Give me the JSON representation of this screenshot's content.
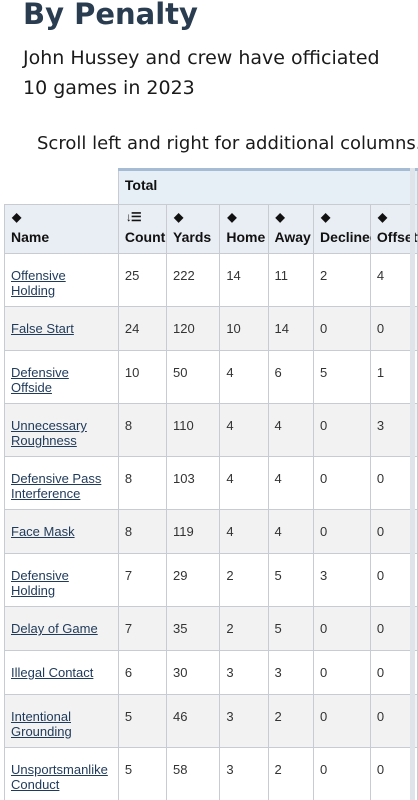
{
  "heading": "By Penalty",
  "subtitle": "John Hussey and crew have officiated 10 games in 2023",
  "scroll_note": "Scroll left and right for additional columns.",
  "table": {
    "group_label": "Total",
    "columns": {
      "name": "Name",
      "count": "Count",
      "yards": "Yards",
      "home": "Home",
      "away": "Away",
      "declined": "Declined",
      "offsetting": "Offsetting"
    },
    "rows": [
      {
        "name": "Offensive Holding",
        "count": "25",
        "yards": "222",
        "home": "14",
        "away": "11",
        "declined": "2",
        "offsetting": "4"
      },
      {
        "name": "False Start",
        "count": "24",
        "yards": "120",
        "home": "10",
        "away": "14",
        "declined": "0",
        "offsetting": "0"
      },
      {
        "name": "Defensive Offside",
        "count": "10",
        "yards": "50",
        "home": "4",
        "away": "6",
        "declined": "5",
        "offsetting": "1"
      },
      {
        "name": "Unnecessary Roughness",
        "count": "8",
        "yards": "110",
        "home": "4",
        "away": "4",
        "declined": "0",
        "offsetting": "3"
      },
      {
        "name": "Defensive Pass Interference",
        "count": "8",
        "yards": "103",
        "home": "4",
        "away": "4",
        "declined": "0",
        "offsetting": "0"
      },
      {
        "name": "Face Mask",
        "count": "8",
        "yards": "119",
        "home": "4",
        "away": "4",
        "declined": "0",
        "offsetting": "0"
      },
      {
        "name": "Defensive Holding",
        "count": "7",
        "yards": "29",
        "home": "2",
        "away": "5",
        "declined": "3",
        "offsetting": "0"
      },
      {
        "name": "Delay of Game",
        "count": "7",
        "yards": "35",
        "home": "2",
        "away": "5",
        "declined": "0",
        "offsetting": "0"
      },
      {
        "name": "Illegal Contact",
        "count": "6",
        "yards": "30",
        "home": "3",
        "away": "3",
        "declined": "0",
        "offsetting": "0"
      },
      {
        "name": "Intentional Grounding",
        "count": "5",
        "yards": "46",
        "home": "3",
        "away": "2",
        "declined": "0",
        "offsetting": "0"
      },
      {
        "name": "Unsportsmanlike Conduct",
        "count": "5",
        "yards": "58",
        "home": "3",
        "away": "2",
        "declined": "0",
        "offsetting": "0"
      }
    ]
  }
}
